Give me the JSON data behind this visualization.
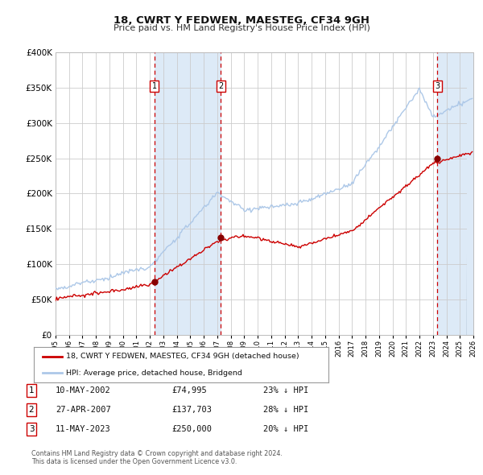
{
  "title": "18, CWRT Y FEDWEN, MAESTEG, CF34 9GH",
  "subtitle": "Price paid vs. HM Land Registry's House Price Index (HPI)",
  "legend_line1": "18, CWRT Y FEDWEN, MAESTEG, CF34 9GH (detached house)",
  "legend_line2": "HPI: Average price, detached house, Bridgend",
  "footer1": "Contains HM Land Registry data © Crown copyright and database right 2024.",
  "footer2": "This data is licensed under the Open Government Licence v3.0.",
  "sale_labels": [
    "1",
    "2",
    "3"
  ],
  "sale_dates": [
    "10-MAY-2002",
    "27-APR-2007",
    "11-MAY-2023"
  ],
  "sale_prices": [
    74995,
    137703,
    250000
  ],
  "sale_hpi_pct": [
    "23% ↓ HPI",
    "28% ↓ HPI",
    "20% ↓ HPI"
  ],
  "hpi_color": "#adc8e8",
  "price_color": "#cc0000",
  "sale_dot_color": "#880000",
  "vline_color": "#cc0000",
  "shade_color": "#ddeaf7",
  "grid_color": "#cccccc",
  "background_color": "#ffffff",
  "ylim": [
    0,
    400000
  ],
  "yticks": [
    0,
    50000,
    100000,
    150000,
    200000,
    250000,
    300000,
    350000,
    400000
  ],
  "start_year": 1995,
  "end_year": 2026
}
